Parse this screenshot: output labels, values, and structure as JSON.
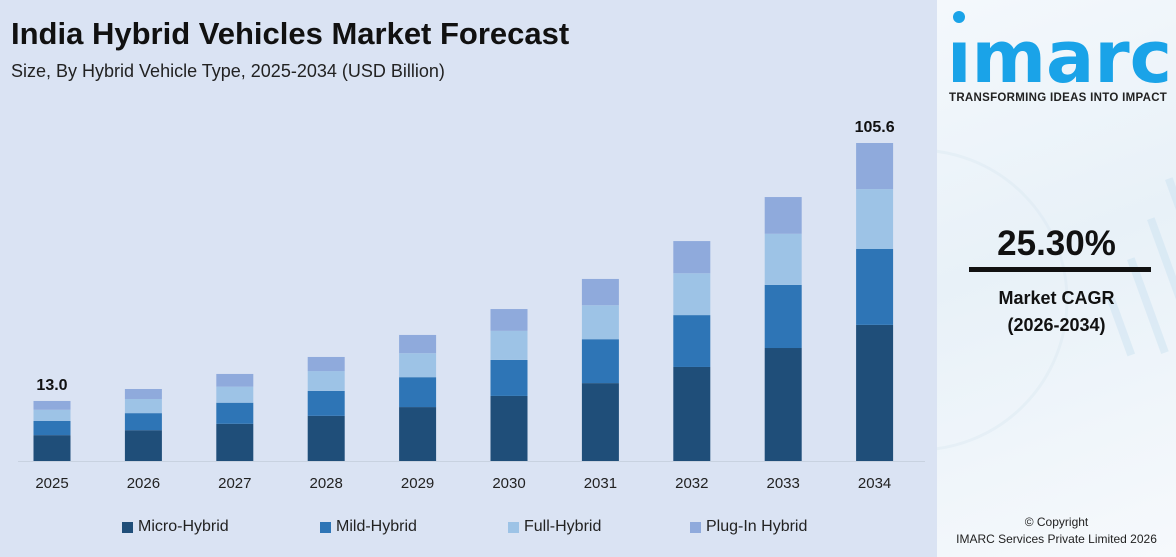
{
  "header": {
    "title": "India Hybrid Vehicles Market Forecast",
    "subtitle": "Size, By Hybrid Vehicle Type, 2025-2034 (USD Billion)"
  },
  "chart_data": {
    "type": "bar",
    "stacked": true,
    "title": "India Hybrid Vehicles Market Forecast",
    "subtitle": "Size, By Hybrid Vehicle Type, 2025-2034 (USD Billion)",
    "categories": [
      "2025",
      "2026",
      "2027",
      "2028",
      "2029",
      "2030",
      "2031",
      "2032",
      "2033",
      "2034"
    ],
    "series": [
      {
        "name": "Micro-Hybrid",
        "color": "#1f4e79",
        "values": [
          5.6,
          7.4,
          9.7,
          12.5,
          15.7,
          19.7,
          24.3,
          30.1,
          36.9,
          45.2
        ]
      },
      {
        "name": "Mild-Hybrid",
        "color": "#2e75b6",
        "values": [
          3.1,
          4.1,
          5.5,
          6.9,
          8.7,
          10.9,
          13.7,
          16.6,
          20.6,
          25.2
        ]
      },
      {
        "name": "Full-Hybrid",
        "color": "#9dc3e6",
        "values": [
          2.4,
          3.4,
          4.2,
          5.5,
          7.0,
          8.8,
          10.6,
          13.4,
          16.7,
          19.9
        ]
      },
      {
        "name": "Plug-In Hybrid",
        "color": "#8faadc",
        "values": [
          1.9,
          2.4,
          3.3,
          3.9,
          5.3,
          6.6,
          8.2,
          10.3,
          12.0,
          15.3
        ]
      }
    ],
    "data_labels": {
      "2025": "13.0",
      "2034": "105.6"
    },
    "grid": false,
    "legend_position": "bottom",
    "xlabel": "",
    "ylabel": ""
  },
  "sidebar": {
    "logo_text": "imarc",
    "tagline": "TRANSFORMING IDEAS INTO IMPACT",
    "cagr_value": "25.30%",
    "cagr_label": "Market CAGR",
    "cagr_period": "(2026-2034)",
    "copyright_line1": "© Copyright",
    "copyright_line2": "IMARC Services Private Limited 2026",
    "brand_color": "#1aa3e8"
  }
}
